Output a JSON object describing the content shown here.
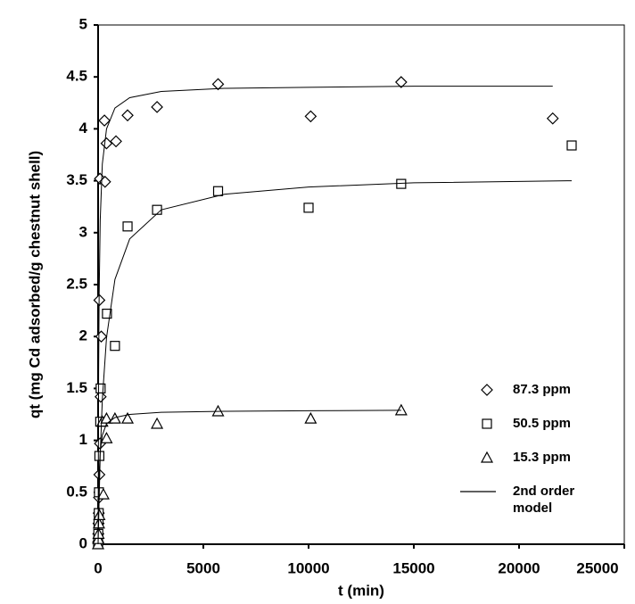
{
  "chart_data": {
    "type": "scatter",
    "x_label": "t (min)",
    "y_label": "qt (mg Cd adsorbed/g chestnut shell)",
    "xlim": [
      0,
      25000
    ],
    "xticks": [
      0,
      5000,
      10000,
      15000,
      20000,
      25000
    ],
    "ylim": [
      0,
      5
    ],
    "yticks": [
      0,
      0.5,
      1,
      1.5,
      2,
      2.5,
      3,
      3.5,
      4,
      4.5,
      5
    ],
    "series": [
      {
        "name": "87.3 ppm",
        "color": "#000000",
        "marker": "diamond",
        "x": [
          0,
          10,
          20,
          30,
          45,
          60,
          90,
          120,
          150,
          60,
          90,
          300,
          330,
          400,
          850,
          1400,
          2800,
          5700,
          10100,
          14400,
          21600
        ],
        "values": [
          0.02,
          0.1,
          0.2,
          0.3,
          0.45,
          0.67,
          0.97,
          1.42,
          2.0,
          2.35,
          3.52,
          4.08,
          3.49,
          3.86,
          3.88,
          4.13,
          4.21,
          4.43,
          4.12,
          4.45,
          4.1
        ]
      },
      {
        "name": "50.5 ppm",
        "color": "#000000",
        "marker": "square",
        "x": [
          0,
          10,
          20,
          30,
          40,
          60,
          100,
          120,
          420,
          800,
          1400,
          2800,
          5700,
          10000,
          14400,
          22500
        ],
        "values": [
          0.02,
          0.1,
          0.2,
          0.3,
          0.5,
          0.85,
          1.18,
          1.5,
          2.22,
          1.91,
          3.06,
          3.22,
          3.4,
          3.24,
          3.47,
          3.84
        ]
      },
      {
        "name": "15.3 ppm",
        "color": "#000000",
        "marker": "triangle",
        "x": [
          0,
          10,
          20,
          40,
          60,
          250,
          400,
          200,
          400,
          800,
          1400,
          2800,
          5700,
          10100,
          14400
        ],
        "values": [
          0.0,
          0.05,
          0.1,
          0.2,
          0.28,
          0.48,
          1.02,
          1.18,
          1.21,
          1.21,
          1.21,
          1.16,
          1.28,
          1.21,
          1.29
        ]
      },
      {
        "name": "2nd order model",
        "color": "#000000",
        "marker": "line",
        "x": [
          0,
          25,
          50,
          100,
          200,
          400,
          800,
          1500,
          3000,
          6000,
          10000,
          15000,
          21600,
          null,
          0,
          100,
          200,
          400,
          800,
          1500,
          3000,
          6000,
          10000,
          15000,
          22500,
          null,
          0,
          50,
          100,
          200,
          400,
          800,
          1500,
          3000,
          6000,
          10000,
          14400
        ],
        "values": [
          0,
          1.66,
          2.41,
          3.12,
          3.66,
          4.0,
          4.2,
          4.3,
          4.36,
          4.39,
          4.4,
          4.41,
          4.41,
          null,
          0,
          0.86,
          1.39,
          1.99,
          2.55,
          2.94,
          3.22,
          3.37,
          3.44,
          3.48,
          3.5,
          null,
          0,
          0.68,
          0.89,
          1.05,
          1.16,
          1.22,
          1.25,
          1.27,
          1.28,
          1.285,
          1.29
        ]
      }
    ]
  }
}
